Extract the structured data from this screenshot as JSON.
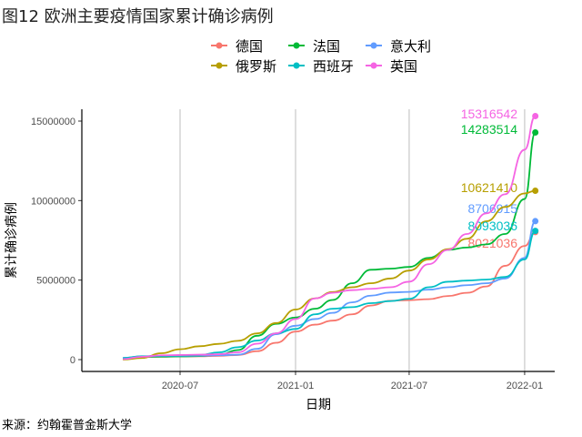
{
  "title": "图12 欧洲主要疫情国家累计确诊病例",
  "source": "来源：约翰霍普金斯大学",
  "chart_data": {
    "type": "line",
    "title": "图12 欧洲主要疫情国家累计确诊病例",
    "xlabel": "日期",
    "ylabel": "累计确诊病例",
    "xlim": [
      "2020-03-01",
      "2022-02-10"
    ],
    "ylim": [
      0,
      15800000
    ],
    "x_ticks": [
      "2020-07",
      "2021-01",
      "2021-07",
      "2022-01"
    ],
    "y_ticks": [
      "0",
      "5000000",
      "10000000",
      "15000000"
    ],
    "y_tick_values": [
      0,
      5000000,
      10000000,
      15000000
    ],
    "grid": "vertical-major",
    "legend_position": "top",
    "dates": [
      "2020-04-01",
      "2020-05-01",
      "2020-06-01",
      "2020-07-01",
      "2020-08-01",
      "2020-09-01",
      "2020-10-01",
      "2020-11-01",
      "2020-12-01",
      "2021-01-01",
      "2021-02-01",
      "2021-03-01",
      "2021-04-01",
      "2021-05-01",
      "2021-06-01",
      "2021-07-01",
      "2021-08-01",
      "2021-09-01",
      "2021-10-01",
      "2021-11-01",
      "2021-12-01",
      "2022-01-01",
      "2022-01-18"
    ],
    "series": [
      {
        "name": "德国",
        "color": "#F8766D",
        "end_label": "8021036",
        "values": [
          0.08,
          0.16,
          0.18,
          0.2,
          0.21,
          0.24,
          0.29,
          0.53,
          1.06,
          1.76,
          2.2,
          2.45,
          2.85,
          3.4,
          3.7,
          3.74,
          3.8,
          4.0,
          4.2,
          4.6,
          5.9,
          7.15,
          8.02
        ]
      },
      {
        "name": "法国",
        "color": "#00BA38",
        "end_label": "14283514",
        "values": [
          0.05,
          0.17,
          0.19,
          0.2,
          0.22,
          0.3,
          0.6,
          1.5,
          2.25,
          2.65,
          3.2,
          3.75,
          4.8,
          5.65,
          5.72,
          5.83,
          6.4,
          6.9,
          7.05,
          7.25,
          7.9,
          10.1,
          14.283514
        ]
      },
      {
        "name": "意大利",
        "color": "#619CFF",
        "end_label": "8706915",
        "values": [
          0.11,
          0.2,
          0.23,
          0.24,
          0.25,
          0.27,
          0.31,
          0.68,
          1.6,
          2.13,
          2.55,
          2.94,
          3.6,
          4.02,
          4.22,
          4.26,
          4.4,
          4.55,
          4.68,
          4.8,
          5.1,
          6.4,
          8.706915
        ]
      },
      {
        "name": "俄罗斯",
        "color": "#B79F00",
        "end_label": "10621410",
        "values": [
          0.003,
          0.1,
          0.4,
          0.65,
          0.84,
          0.99,
          1.18,
          1.65,
          2.3,
          3.15,
          3.85,
          4.25,
          4.55,
          4.8,
          5.1,
          5.6,
          6.3,
          6.95,
          7.6,
          8.7,
          9.6,
          10.45,
          10.62141
        ]
      },
      {
        "name": "西班牙",
        "color": "#00BFC4",
        "end_label": "8093036",
        "values": [
          0.1,
          0.21,
          0.24,
          0.25,
          0.29,
          0.46,
          0.78,
          1.2,
          1.65,
          1.93,
          2.85,
          3.2,
          3.3,
          3.55,
          3.68,
          3.82,
          4.55,
          4.9,
          4.97,
          5.03,
          5.2,
          6.3,
          8.093036
        ]
      },
      {
        "name": "英国",
        "color": "#F564E3",
        "end_label": "15316542",
        "values": [
          0.03,
          0.18,
          0.27,
          0.29,
          0.31,
          0.34,
          0.46,
          1.0,
          1.65,
          2.55,
          3.85,
          4.2,
          4.37,
          4.45,
          4.55,
          4.9,
          6.0,
          6.9,
          7.9,
          9.2,
          10.4,
          13.2,
          15.316542
        ]
      }
    ]
  }
}
